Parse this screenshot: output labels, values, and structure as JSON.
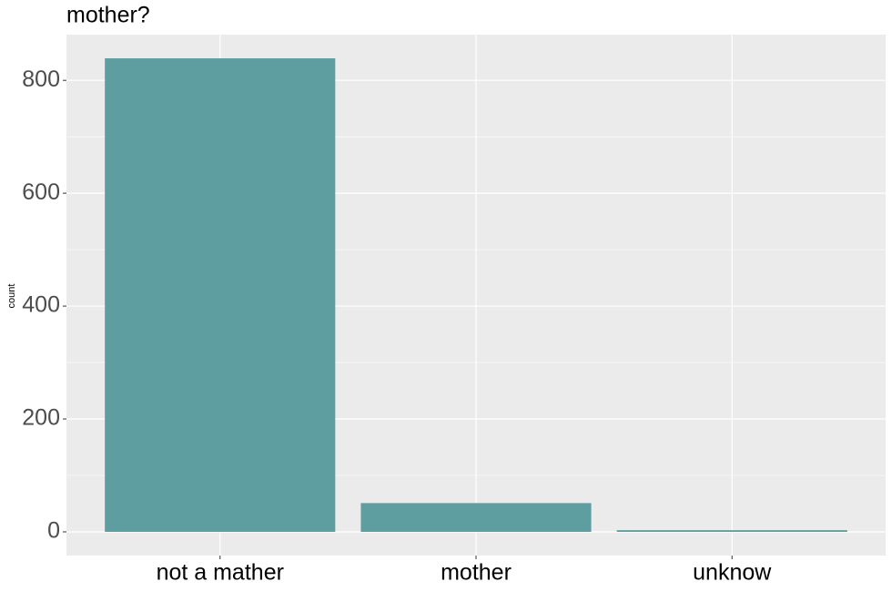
{
  "chart_data": {
    "type": "bar",
    "title": "mother?",
    "y_label": "count",
    "categories": [
      "not a mather",
      "mother",
      "unknow"
    ],
    "values": [
      839,
      51,
      3
    ],
    "color": "#5f9ea0",
    "ylim": [
      -42,
      881
    ],
    "yticks": [
      0,
      200,
      400,
      600,
      800
    ],
    "minor_yticks": [
      100,
      300,
      500,
      700
    ],
    "grid": true
  }
}
